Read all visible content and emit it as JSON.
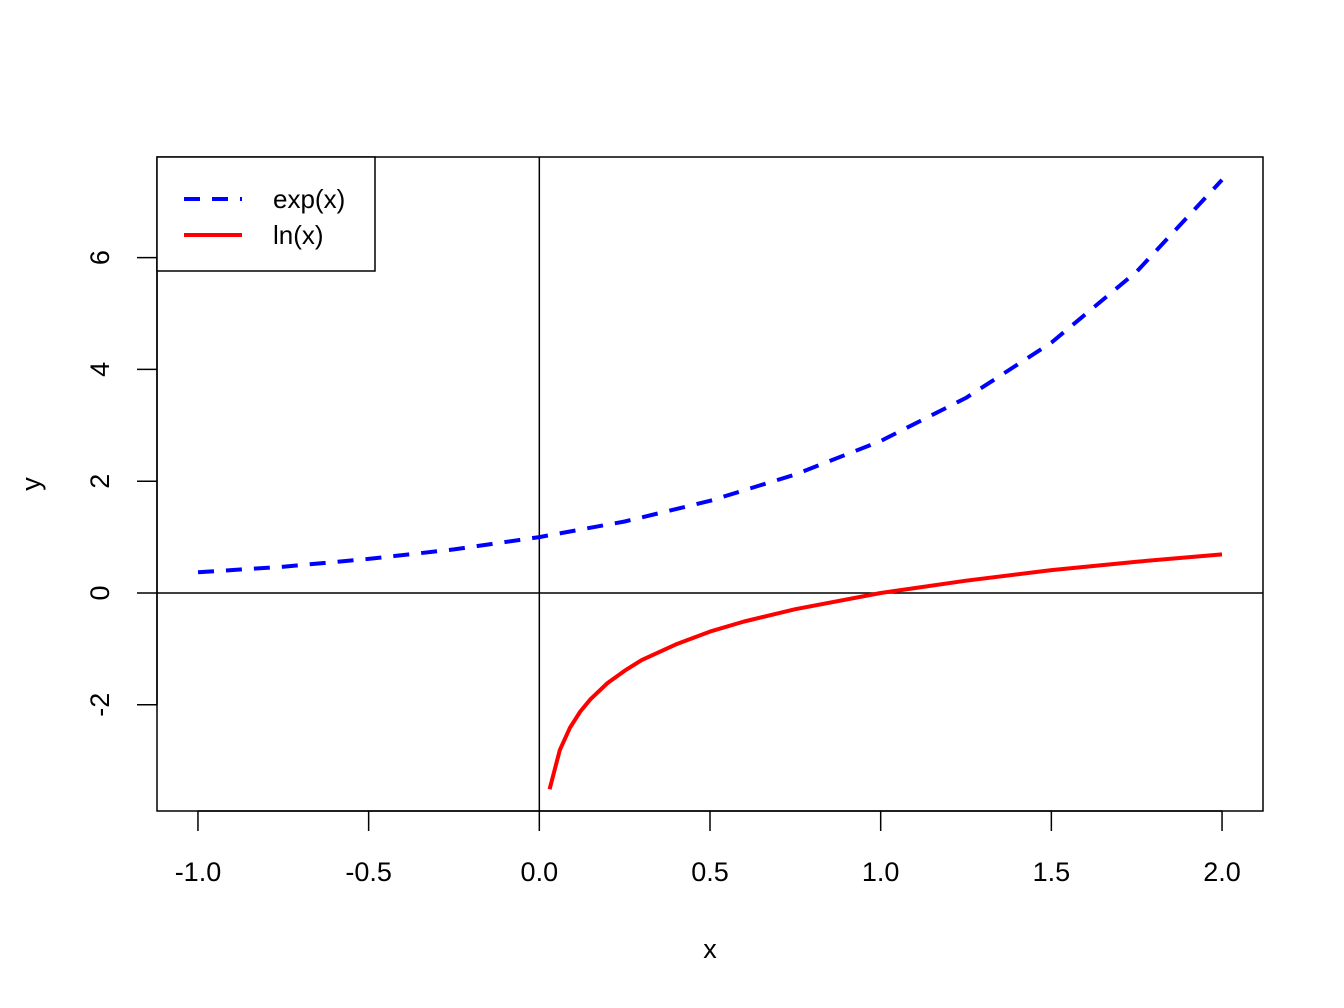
{
  "chart_data": {
    "type": "line",
    "title": "",
    "xlabel": "x",
    "ylabel": "y",
    "xlim": [
      -1.12,
      2.12
    ],
    "ylim": [
      -3.9,
      7.8
    ],
    "x_ticks": [
      "-1.0",
      "-0.5",
      "0.0",
      "0.5",
      "1.0",
      "1.5",
      "2.0"
    ],
    "y_ticks": [
      "-2",
      "0",
      "2",
      "4",
      "6"
    ],
    "reference_lines": {
      "h": 0,
      "v": 0
    },
    "grid": false,
    "legend_position": "top-left",
    "series": [
      {
        "name": "exp(x)",
        "color": "#0000ff",
        "style": "dashed",
        "x": [
          -1.0,
          -0.75,
          -0.5,
          -0.25,
          0.0,
          0.25,
          0.5,
          0.75,
          1.0,
          1.25,
          1.5,
          1.75,
          2.0
        ],
        "y": [
          0.37,
          0.47,
          0.61,
          0.78,
          1.0,
          1.28,
          1.65,
          2.12,
          2.72,
          3.49,
          4.48,
          5.75,
          7.39
        ]
      },
      {
        "name": "ln(x)",
        "color": "#ff0000",
        "style": "solid",
        "x": [
          0.03,
          0.06,
          0.09,
          0.12,
          0.15,
          0.2,
          0.25,
          0.3,
          0.4,
          0.5,
          0.6,
          0.75,
          1.0,
          1.25,
          1.5,
          1.75,
          2.0
        ],
        "y": [
          -3.51,
          -2.81,
          -2.41,
          -2.12,
          -1.9,
          -1.61,
          -1.39,
          -1.2,
          -0.92,
          -0.69,
          -0.51,
          -0.29,
          0.0,
          0.22,
          0.41,
          0.56,
          0.69
        ]
      }
    ]
  }
}
